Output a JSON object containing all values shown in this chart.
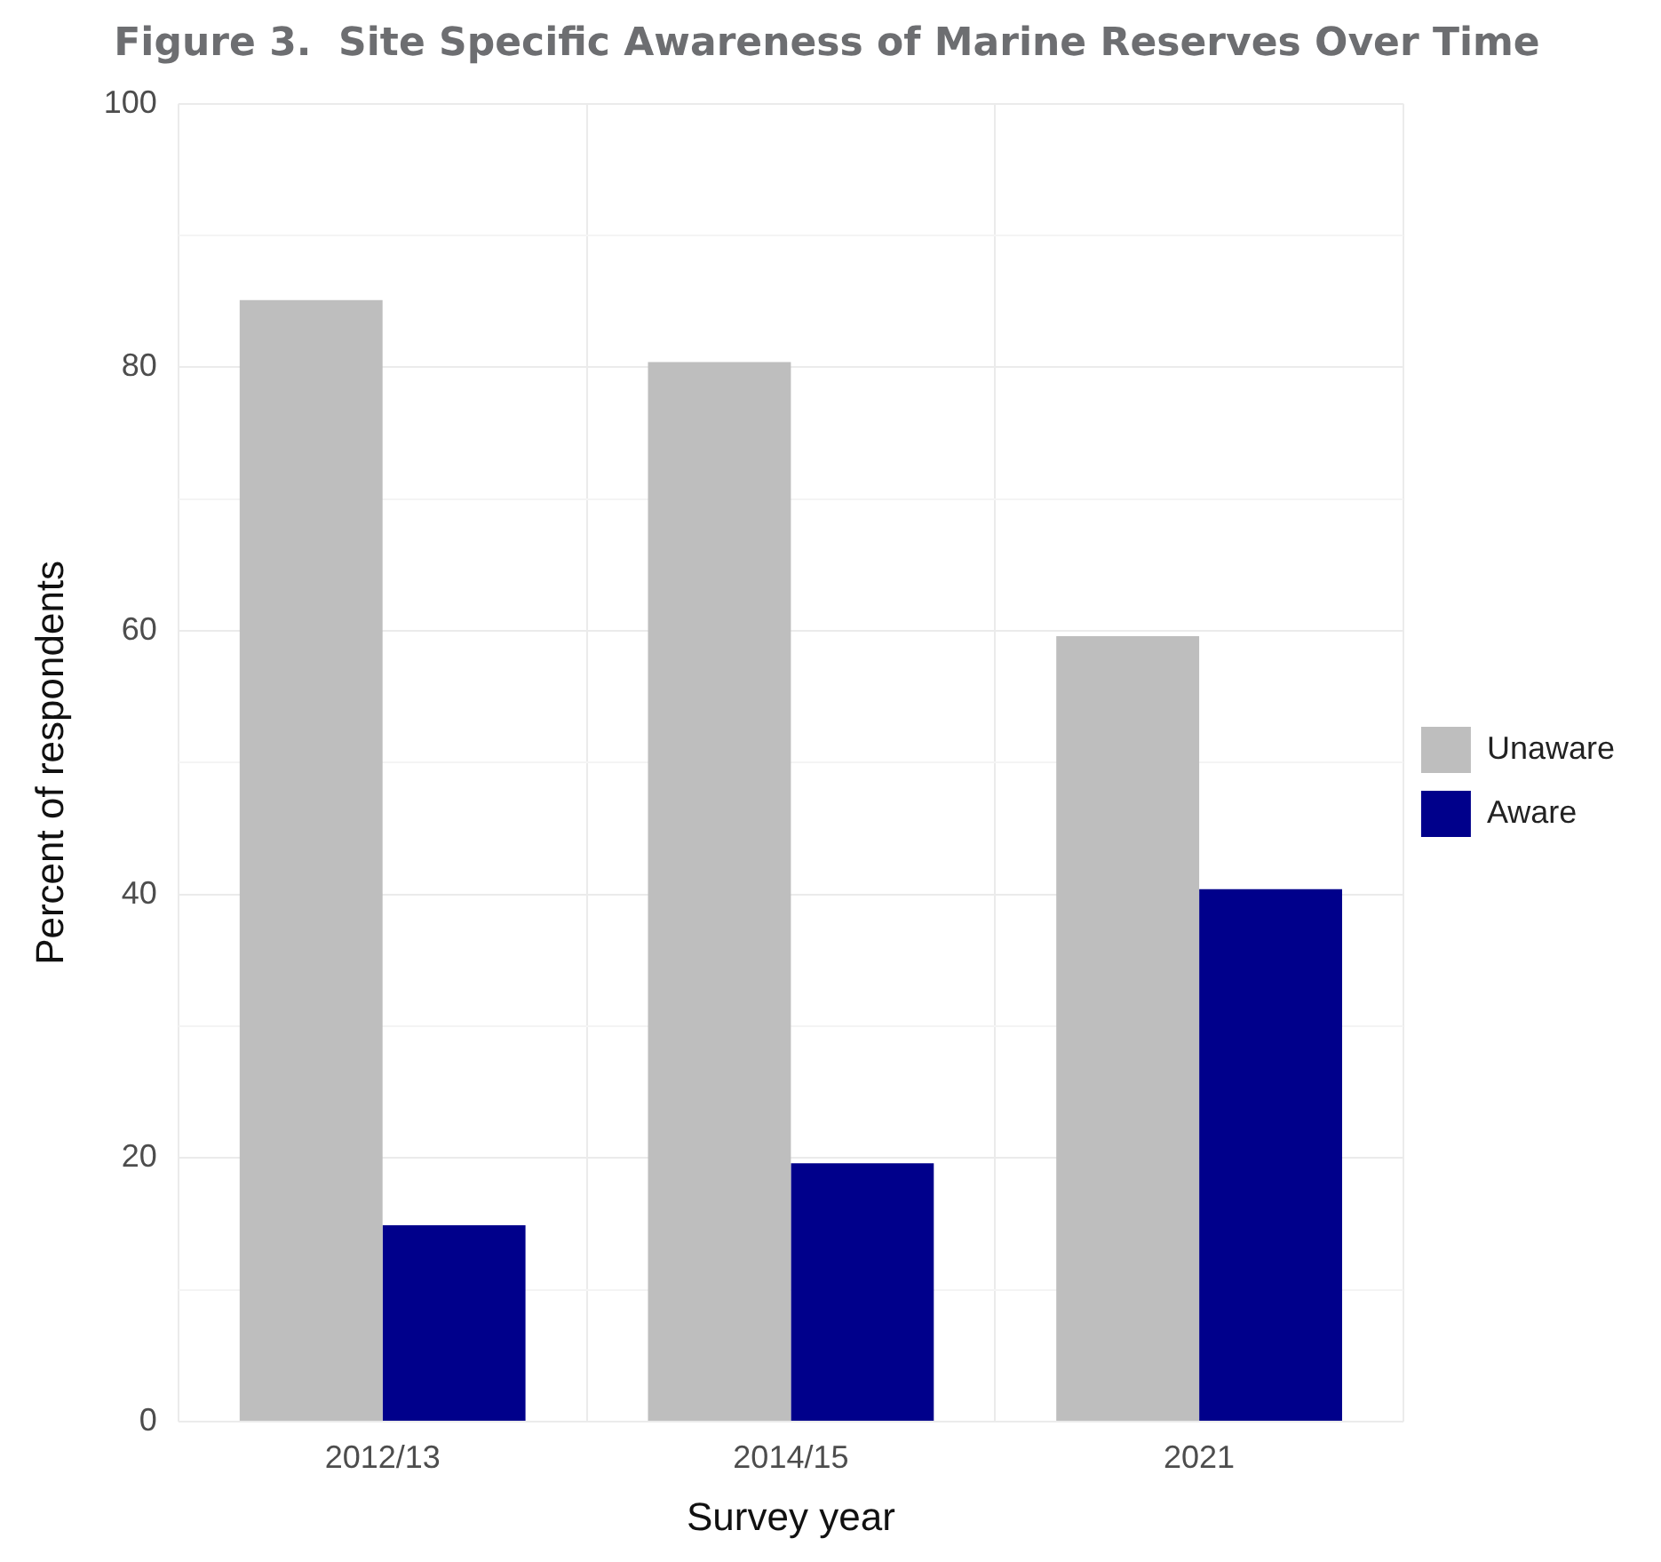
{
  "chart_data": {
    "type": "bar",
    "title": "Figure 3.  Site Specific Awareness of Marine Reserves Over Time",
    "xlabel": "Survey year",
    "ylabel": "Percent of respondents",
    "categories": [
      "2012/13",
      "2014/15",
      "2021"
    ],
    "series": [
      {
        "name": "Unaware",
        "color": "#bebebe",
        "values": [
          85.1,
          80.4,
          59.6
        ]
      },
      {
        "name": "Aware",
        "color": "#00008b",
        "values": [
          14.9,
          19.6,
          40.4
        ]
      }
    ],
    "ylim": [
      0,
      100
    ],
    "yticks": [
      0,
      {
        "value": 10,
        "label": null
      },
      20,
      {
        "value": 30,
        "label": null
      },
      40,
      {
        "value": 50,
        "label": null
      },
      60,
      {
        "value": 70,
        "label": null
      },
      80,
      {
        "value": 90,
        "label": null
      },
      100
    ],
    "grid": true,
    "legend": "right"
  }
}
